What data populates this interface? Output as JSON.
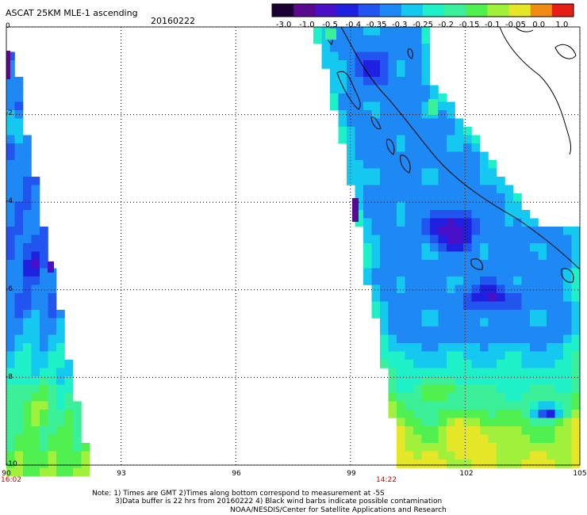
{
  "header": {
    "title": "ASCAT 25KM MLE-1 ascending",
    "date": "20160222"
  },
  "colorbar": {
    "labels": [
      "-3.0",
      "-1.0",
      "-0.5",
      "-0.4",
      "-0.35",
      "-0.3",
      "-0.25",
      "-0.2",
      "-0.15",
      "-0.1",
      "-0.05",
      "0.0",
      "1.0"
    ],
    "colors": [
      "#1a0033",
      "#5a0a8c",
      "#4a10c8",
      "#2020e0",
      "#2255f0",
      "#1e88f5",
      "#14c8f0",
      "#1ef0c8",
      "#3cf09a",
      "#50f050",
      "#a0f03c",
      "#e6e628",
      "#f08c14",
      "#e61e14"
    ]
  },
  "axes": {
    "y_labels": [
      "0",
      "-2",
      "-4",
      "-6",
      "-8",
      "-10"
    ],
    "x_labels": [
      "90",
      "93",
      "96",
      "99",
      "102",
      "105"
    ]
  },
  "times": {
    "left": "16:02",
    "right": "14:22"
  },
  "notes": {
    "line1": "Note: 1) Times are GMT 2)Times along bottom correspond to measurement at -5S",
    "line2": "3)Data buffer is 22 hrs from 20160222 4) Black wind barbs indicate possible contamination",
    "line3": "NOAA/NESDIS/Center for Satellite Applications and Research"
  }
}
